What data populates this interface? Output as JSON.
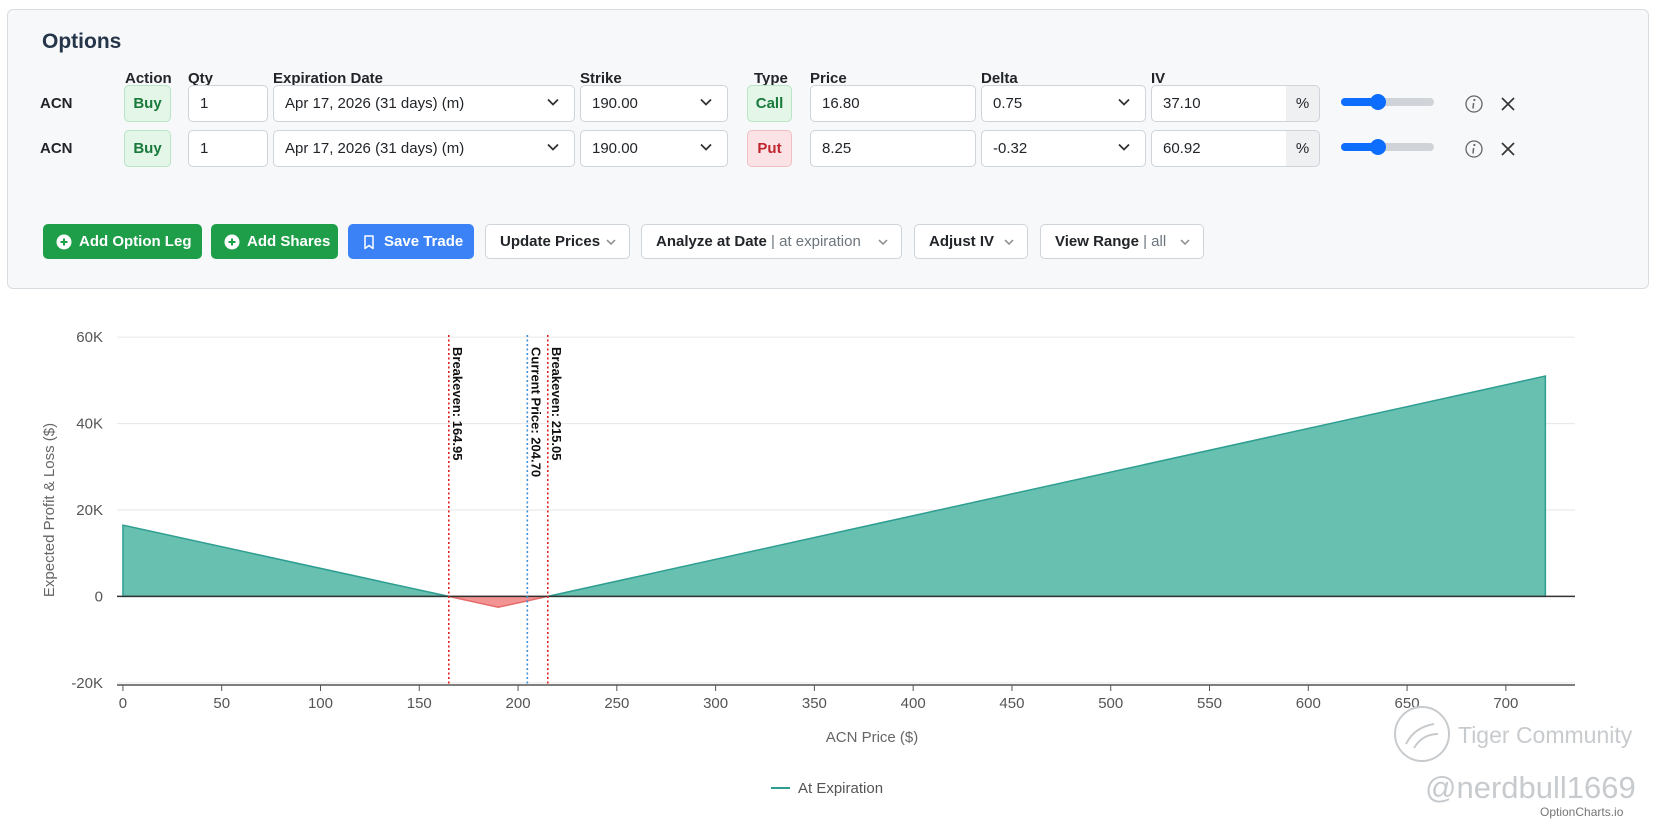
{
  "panel": {
    "title": "Options",
    "headers": {
      "action": "Action",
      "qty": "Qty",
      "expiration": "Expiration Date",
      "strike": "Strike",
      "type": "Type",
      "price": "Price",
      "delta": "Delta",
      "iv": "IV"
    },
    "legs": [
      {
        "ticker": "ACN",
        "action": "Buy",
        "qty": "1",
        "expiration": "Apr 17, 2026 (31 days) (m)",
        "strike": "190.00",
        "type": "Call",
        "price": "16.80",
        "delta": "0.75",
        "iv": "37.10",
        "iv_unit": "%",
        "slider_level": 0.4
      },
      {
        "ticker": "ACN",
        "action": "Buy",
        "qty": "1",
        "expiration": "Apr 17, 2026 (31 days) (m)",
        "strike": "190.00",
        "type": "Put",
        "price": "8.25",
        "delta": "-0.32",
        "iv": "60.92",
        "iv_unit": "%",
        "slider_level": 0.4
      }
    ]
  },
  "toolbar": {
    "add_option_leg": "Add Option Leg",
    "add_shares": "Add Shares",
    "save_trade": "Save Trade",
    "update_prices": "Update Prices",
    "analyze_at_date": "Analyze at Date",
    "analyze_value": "| at expiration",
    "adjust_iv": "Adjust IV",
    "view_range": "View Range",
    "view_range_value": "| all"
  },
  "colors": {
    "profit": "#5bbbaa",
    "loss": "#f28b8b",
    "breakeven": "#e02020",
    "current": "#3a8fd6",
    "green_button": "#1e9e48",
    "blue_button": "#3b82f6"
  },
  "chart_data": {
    "type": "area",
    "xlabel": "ACN Price ($)",
    "ylabel": "Expected Profit & Loss ($)",
    "x_ticks": [
      "0",
      "50",
      "100",
      "150",
      "200",
      "250",
      "300",
      "350",
      "400",
      "450",
      "500",
      "550",
      "600",
      "650",
      "700"
    ],
    "y_ticks": [
      "60K",
      "40K",
      "20K",
      "0",
      "-20K"
    ],
    "xlim": [
      -3,
      735
    ],
    "ylim": [
      -20500,
      60500
    ],
    "series": [
      {
        "name": "At Expiration",
        "x": [
          0,
          164.95,
          190,
          215.05,
          720
        ],
        "y": [
          16500,
          0,
          -2505,
          0,
          50995
        ]
      }
    ],
    "annotations": [
      {
        "label": "Breakeven: 164.95",
        "x": 164.95,
        "kind": "breakeven"
      },
      {
        "label": "Current Price: 204.70",
        "x": 204.7,
        "kind": "current"
      },
      {
        "label": "Breakeven: 215.05",
        "x": 215.05,
        "kind": "breakeven"
      }
    ],
    "grid": true,
    "legend": "bottom-center"
  },
  "watermark": {
    "community": "Tiger Community",
    "handle": "@nerdbull1669",
    "site": "OptionCharts.io"
  }
}
